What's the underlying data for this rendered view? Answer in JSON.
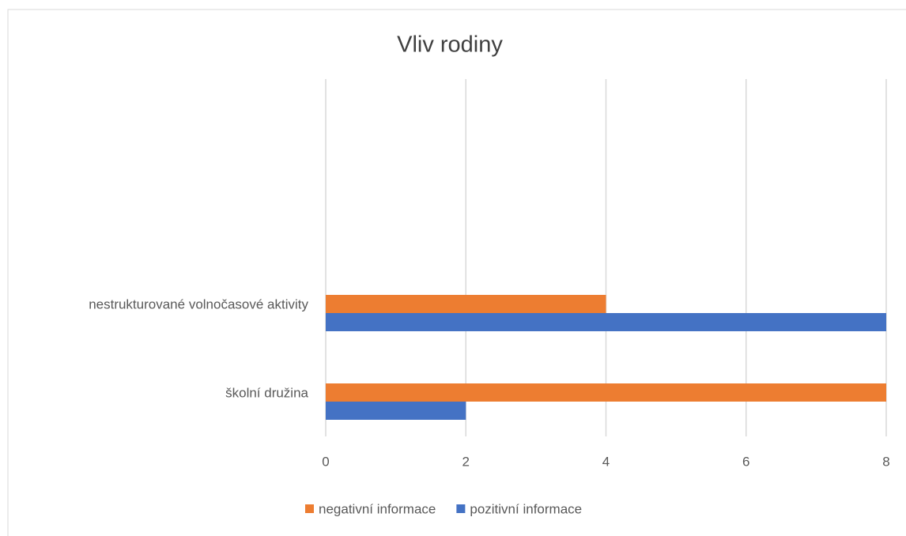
{
  "chart_data": {
    "type": "hbar",
    "title": "Vliv rodiny",
    "categories": [
      "školní družina",
      "nestrukturované volnočasové aktivity"
    ],
    "series": [
      {
        "name": "negativní informace",
        "color": "#ed7d31",
        "values": [
          8,
          4
        ]
      },
      {
        "name": "pozitivní informace",
        "color": "#4472c4",
        "values": [
          2,
          8
        ]
      }
    ],
    "xlim": [
      0,
      8
    ],
    "xticks": [
      0,
      2,
      4,
      6,
      8
    ],
    "grid": true,
    "legend": "bottom"
  }
}
